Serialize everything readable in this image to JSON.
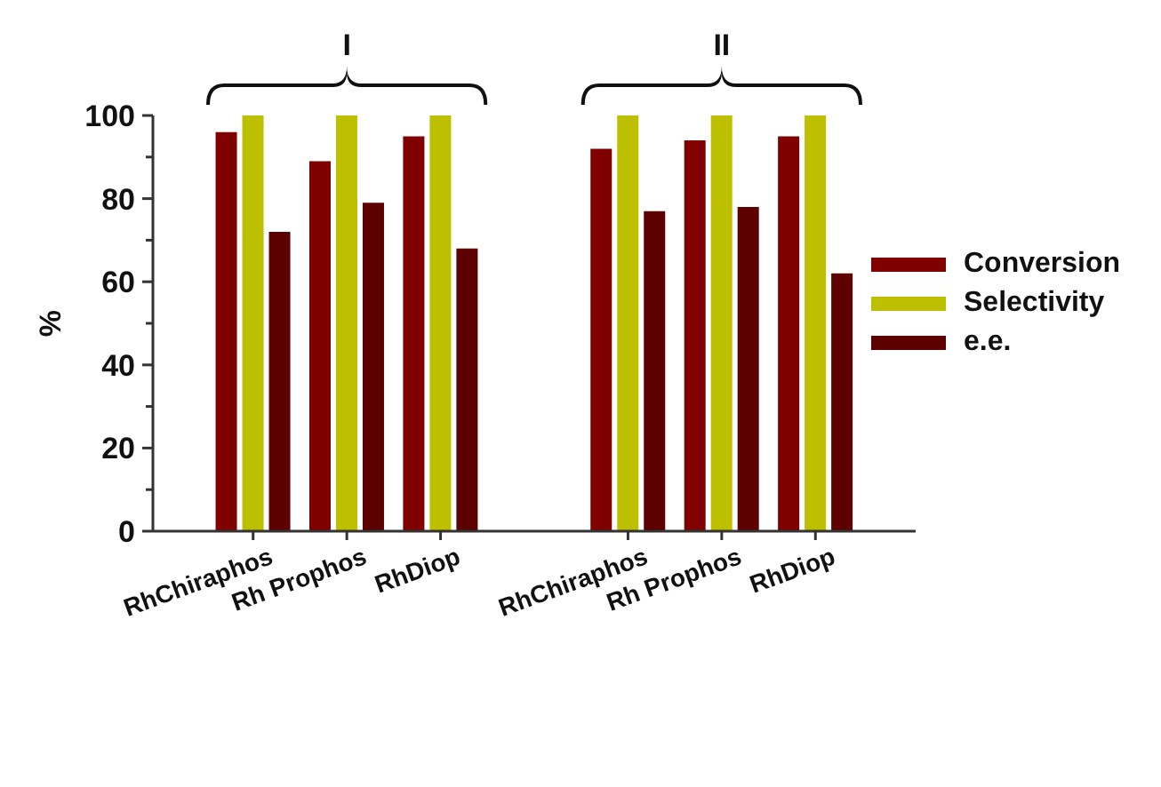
{
  "chart_data": {
    "type": "bar",
    "ylabel": "%",
    "categories": [
      "RhChiraphos",
      "Rh Prophos",
      "RhDiop",
      null,
      "RhChiraphos",
      "Rh Prophos",
      "RhDiop"
    ],
    "series": [
      {
        "name": "Conversion",
        "color": "#800000",
        "values": [
          96,
          89,
          95,
          null,
          92,
          94,
          95
        ]
      },
      {
        "name": "Selectivity",
        "color": "#bcc000",
        "values": [
          100,
          100,
          100,
          null,
          100,
          100,
          100
        ]
      },
      {
        "name": "e.e.",
        "color": "#5c0000",
        "values": [
          72,
          79,
          68,
          null,
          77,
          78,
          62
        ]
      }
    ],
    "ylim": [
      0,
      100
    ],
    "yticks": [
      0,
      {
        "value": 10,
        "label": null
      },
      20,
      {
        "value": 30,
        "label": null
      },
      40,
      {
        "value": 50,
        "label": null
      },
      60,
      {
        "value": 70,
        "label": null
      },
      80,
      {
        "value": 90,
        "label": null
      },
      100
    ],
    "annotations": [
      "I",
      "II"
    ],
    "legend": "right",
    "grid": false
  }
}
